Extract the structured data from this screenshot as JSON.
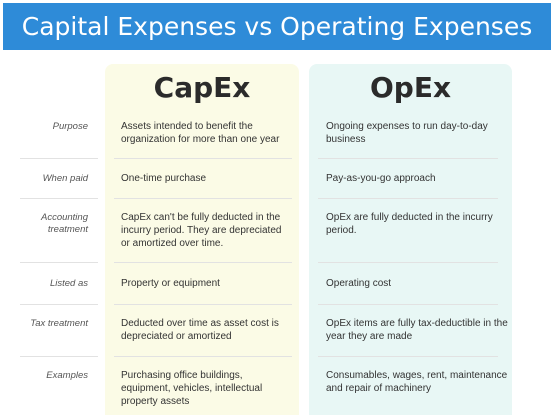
{
  "title": "Capital Expenses vs Operating Expenses",
  "columns": {
    "capex": "CapEx",
    "opex": "OpEx"
  },
  "rows": [
    {
      "label": "Purpose",
      "capex": "Assets intended to benefit the organization for more than one year",
      "opex": "Ongoing expenses to run day-to-day business"
    },
    {
      "label": "When paid",
      "capex": "One-time purchase",
      "opex": "Pay-as-you-go approach"
    },
    {
      "label": "Accounting treatment",
      "capex": "CapEx can't be fully deducted in the incurry period. They are depreciated or amortized over time.",
      "opex": "OpEx are fully deducted in the incurry period."
    },
    {
      "label": "Listed as",
      "capex": "Property or equipment",
      "opex": "Operating cost"
    },
    {
      "label": "Tax treatment",
      "capex": "Deducted over time as asset cost is depreciated or amortized",
      "opex": "OpEx items are fully tax-deductible in the year they are made"
    },
    {
      "label": "Examples",
      "capex": "Purchasing office buildings, equipment, vehicles, intellectual property assets",
      "opex": "Consumables, wages, rent, maintenance and repair of machinery"
    }
  ],
  "colors": {
    "banner": "#2e8bd8",
    "capex_bg": "#fbfbe6",
    "opex_bg": "#e8f7f5"
  }
}
